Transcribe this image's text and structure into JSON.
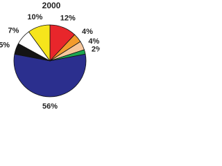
{
  "chart_data": {
    "type": "pie",
    "title": "2000",
    "categories": [
      null,
      null,
      null,
      null,
      null,
      null,
      null,
      null
    ],
    "values": [
      12,
      4,
      4,
      2,
      56,
      5,
      7,
      10
    ],
    "value_labels": [
      "12%",
      "4%",
      "4%",
      "2%",
      "56%",
      "5%",
      "7%",
      "10%"
    ],
    "colors": [
      "#e8262b",
      "#f39c2c",
      "#f7c79b",
      "#1ea650",
      "#2b2f8e",
      "#141414",
      "#ffffff",
      "#f6e51c"
    ]
  }
}
